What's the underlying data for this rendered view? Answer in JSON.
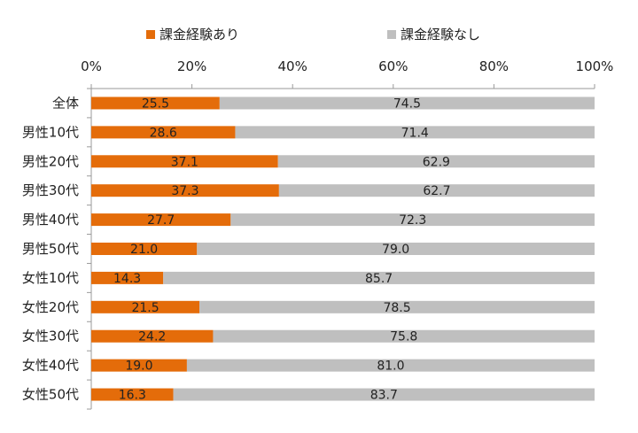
{
  "chart_data": {
    "type": "bar",
    "stacked": true,
    "orientation": "horizontal",
    "title": "",
    "categories": [
      "全体",
      "男性10代",
      "男性20代",
      "男性30代",
      "男性40代",
      "男性50代",
      "女性10代",
      "女性20代",
      "女性30代",
      "女性40代",
      "女性50代"
    ],
    "series": [
      {
        "name": "課金経験あり",
        "color": "#e46c0a",
        "values": [
          25.5,
          28.6,
          37.1,
          37.3,
          27.7,
          21.0,
          14.3,
          21.5,
          24.2,
          19.0,
          16.3
        ],
        "labels": [
          "25.5",
          "28.6",
          "37.1",
          "37.3",
          "27.7",
          "21.0",
          "14.3",
          "21.5",
          "24.2",
          "19.0",
          "16.3"
        ]
      },
      {
        "name": "課金経験なし",
        "color": "#bfbfbf",
        "values": [
          74.5,
          71.4,
          62.9,
          62.7,
          72.3,
          79.0,
          85.7,
          78.5,
          75.8,
          81.0,
          83.7
        ],
        "labels": [
          "74.5",
          "71.4",
          "62.9",
          "62.7",
          "72.3",
          "79.0",
          "85.7",
          "78.5",
          "75.8",
          "81.0",
          "83.7"
        ]
      }
    ],
    "xlim": [
      0,
      100
    ],
    "xticks": [
      0,
      20,
      40,
      60,
      80,
      100
    ],
    "xtick_labels": [
      "0%",
      "20%",
      "40%",
      "60%",
      "80%",
      "100%"
    ],
    "xlabel": "",
    "ylabel": "",
    "legend_position": "top",
    "grid": false
  }
}
